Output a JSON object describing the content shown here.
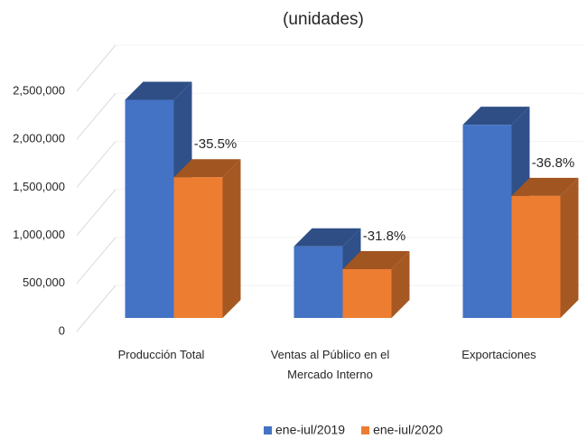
{
  "chart_data": {
    "type": "bar3d",
    "title": "(unidades)",
    "categories": [
      "Producción Total",
      "Ventas al Público en el Mercado Interno",
      "Exportaciones"
    ],
    "series": [
      {
        "name": "ene-iul/2019",
        "color": "#4472c4",
        "values": [
          2270000,
          745000,
          2010000
        ]
      },
      {
        "name": "ene-iul/2020",
        "color": "#ed7d31",
        "values": [
          1464000,
          508000,
          1270000
        ]
      }
    ],
    "change_labels": [
      "-35.5%",
      "-31.8%",
      "-36.8%"
    ],
    "ylim": [
      0,
      2500000
    ],
    "yticks": [
      0,
      {
        "value": 500000,
        "label": "500,000"
      },
      {
        "value": 1000000,
        "label": "1,000,000"
      },
      {
        "value": 1500000,
        "label": "1,500,000"
      },
      {
        "value": 2000000,
        "label": "2,000,000"
      },
      {
        "value": 2500000,
        "label": "2,500,000"
      }
    ],
    "grid": true,
    "legend": "bottom"
  }
}
